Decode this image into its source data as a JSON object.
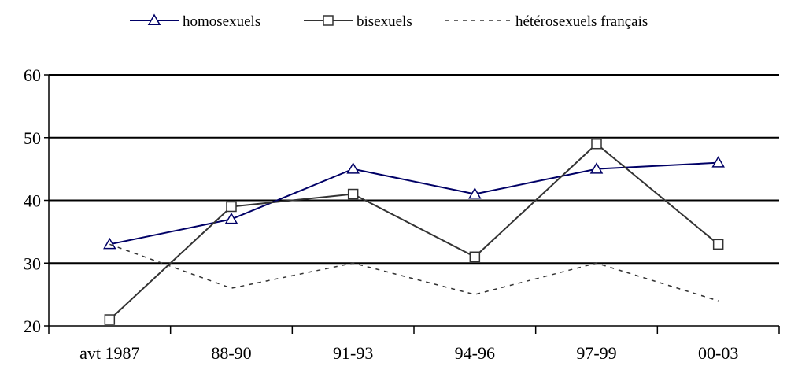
{
  "chart_data": {
    "type": "line",
    "categories": [
      "avt 1987",
      "88-90",
      "91-93",
      "94-96",
      "97-99",
      "00-03"
    ],
    "ylim": [
      20,
      60
    ],
    "yticks": [
      20,
      30,
      40,
      50,
      60
    ],
    "grid": true,
    "legend_position": "top",
    "series": [
      {
        "name": "homosexuels",
        "values": [
          33,
          37,
          45,
          41,
          45,
          46
        ],
        "color": "#000066",
        "marker": "triangle",
        "line": "solid"
      },
      {
        "name": "bisexuels",
        "values": [
          21,
          39,
          41,
          31,
          49,
          33
        ],
        "color": "#333333",
        "marker": "square",
        "line": "solid"
      },
      {
        "name": "hétérosexuels français",
        "values": [
          33,
          26,
          30,
          25,
          30,
          24
        ],
        "color": "#333333",
        "marker": "none",
        "line": "dashed"
      }
    ]
  }
}
